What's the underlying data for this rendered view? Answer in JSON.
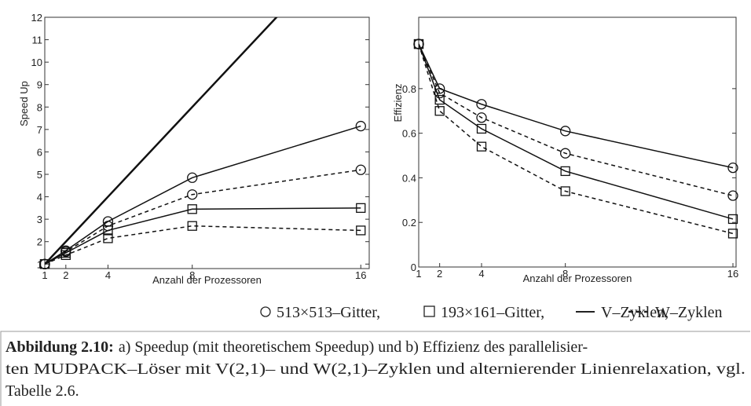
{
  "chart_data": [
    {
      "type": "line",
      "xlabel": "Anzahl der Prozessoren",
      "ylabel": "Speed Up",
      "x": [
        1,
        2,
        4,
        8,
        16
      ],
      "xlim": [
        1,
        16.4
      ],
      "xticks": [
        1,
        2,
        4,
        8,
        16
      ],
      "ylim": [
        0.8,
        12
      ],
      "yticks": [
        1,
        2,
        3,
        4,
        5,
        6,
        7,
        8,
        9,
        10,
        11,
        12
      ],
      "series": [
        {
          "color": "#111",
          "dash": "solid",
          "marker": "none",
          "values": [
            1,
            2,
            4,
            8,
            16
          ]
        },
        {
          "color": "#111",
          "dash": "solid",
          "marker": "circle",
          "values": [
            1,
            1.6,
            2.9,
            4.85,
            7.15
          ]
        },
        {
          "color": "#111",
          "dash": "dashed",
          "marker": "circle",
          "values": [
            1,
            1.55,
            2.7,
            4.1,
            5.2
          ]
        },
        {
          "color": "#111",
          "dash": "solid",
          "marker": "square",
          "values": [
            1,
            1.5,
            2.5,
            3.45,
            3.5
          ]
        },
        {
          "color": "#111",
          "dash": "dashed",
          "marker": "square",
          "values": [
            1,
            1.4,
            2.15,
            2.7,
            2.5
          ]
        }
      ]
    },
    {
      "type": "line",
      "xlabel": "Anzahl der Prozessoren",
      "ylabel": "Effizienz",
      "x": [
        1,
        2,
        4,
        8,
        16
      ],
      "xlim": [
        1,
        16.15
      ],
      "xticks": [
        1,
        2,
        4,
        8,
        16
      ],
      "ylim": [
        0,
        1.12
      ],
      "yticks": [
        0,
        0.2,
        0.4,
        0.6,
        0.8
      ],
      "series": [
        {
          "color": "#111",
          "dash": "solid",
          "marker": "circle",
          "values": [
            1,
            0.8,
            0.73,
            0.61,
            0.445
          ]
        },
        {
          "color": "#111",
          "dash": "dashed",
          "marker": "circle",
          "values": [
            1,
            0.78,
            0.67,
            0.51,
            0.32
          ]
        },
        {
          "color": "#111",
          "dash": "solid",
          "marker": "square",
          "values": [
            1,
            0.75,
            0.62,
            0.43,
            0.215
          ]
        },
        {
          "color": "#111",
          "dash": "dashed",
          "marker": "square",
          "values": [
            1,
            0.7,
            0.54,
            0.34,
            0.15
          ]
        }
      ]
    }
  ],
  "legend": [
    "513×513–Gitter,",
    "193×161–Gitter,",
    "V–Zyklen,",
    "W–Zyklen"
  ],
  "caption": {
    "label": "Abbildung 2.10:",
    "lines": [
      "a) Speedup (mit theoretischem Speedup) und   b) Effizienz des parallelisier-",
      "ten MUDPACK–Löser mit V(2,1)– und W(2,1)–Zyklen und alternierender Linienrelaxation, vgl.",
      "Tabelle 2.6."
    ]
  }
}
